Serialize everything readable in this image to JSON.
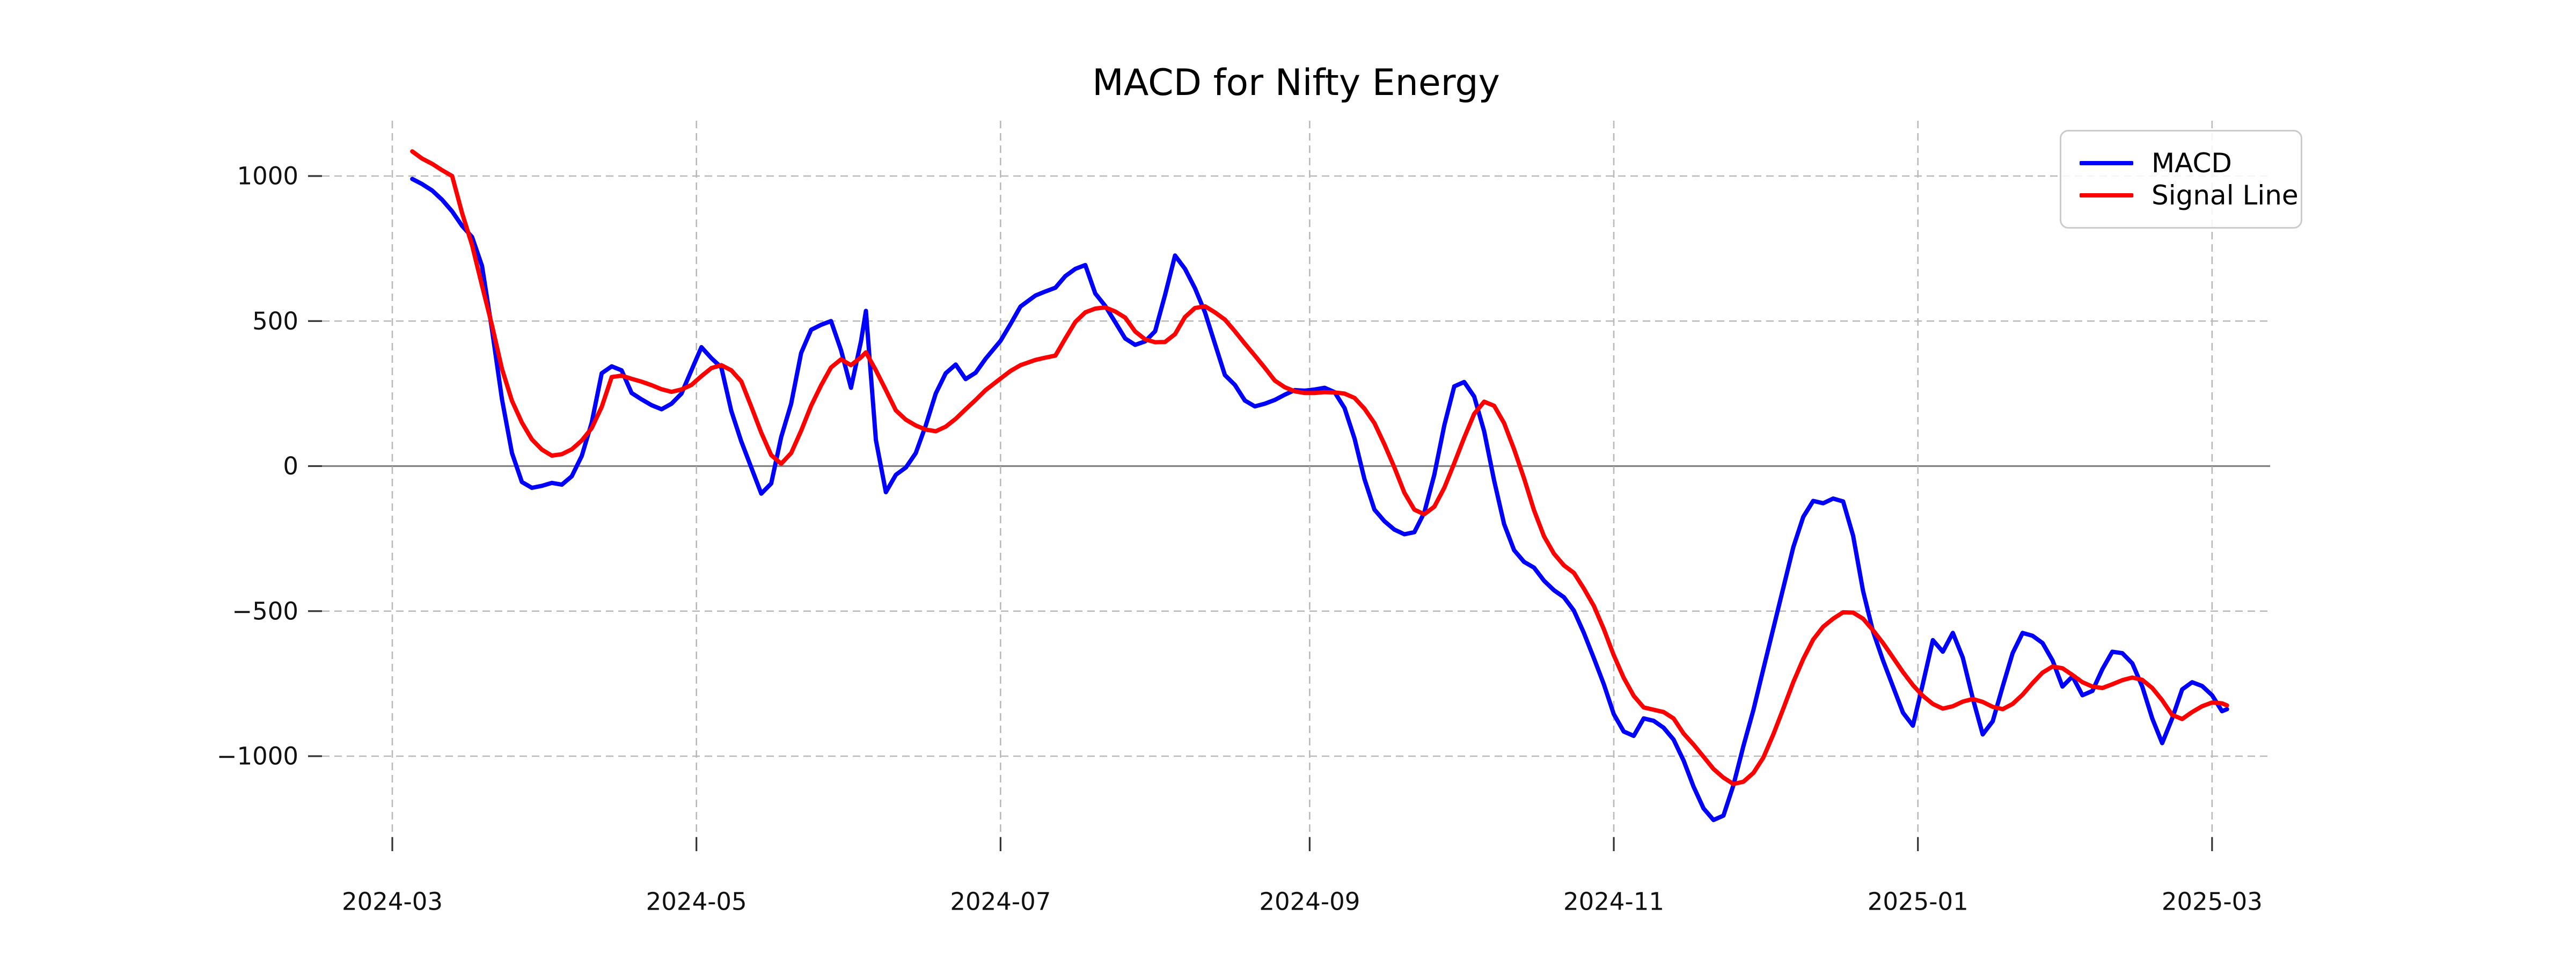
{
  "title": "MACD for Nifty Energy",
  "legend": {
    "items": [
      {
        "label": "MACD",
        "color": "#0000ff"
      },
      {
        "label": "Signal Line",
        "color": "#ff0000"
      }
    ]
  },
  "axes": {
    "y_ticks": [
      {
        "label": "1000",
        "value": 1000
      },
      {
        "label": "500",
        "value": 500
      },
      {
        "label": "0",
        "value": 0
      },
      {
        "label": "−500",
        "value": -500
      },
      {
        "label": "−1000",
        "value": -1000
      }
    ],
    "x_ticks": [
      {
        "label": "2024-03",
        "date": "2024-03-01"
      },
      {
        "label": "2024-05",
        "date": "2024-05-01"
      },
      {
        "label": "2024-07",
        "date": "2024-07-01"
      },
      {
        "label": "2024-09",
        "date": "2024-09-01"
      },
      {
        "label": "2024-11",
        "date": "2024-11-01"
      },
      {
        "label": "2025-01",
        "date": "2025-01-01"
      },
      {
        "label": "2025-03",
        "date": "2025-03-01"
      }
    ]
  },
  "chart_data": {
    "type": "line",
    "title": "MACD for Nifty Energy",
    "xlabel": "",
    "ylabel": "",
    "grid": true,
    "legend_position": "upper right",
    "zero_line": 0,
    "ylim": [
      -1350,
      1200
    ],
    "x_range": [
      "2024-03-05",
      "2025-03-04"
    ],
    "colors": {
      "macd": "#0000ff",
      "signal": "#ff0000",
      "grid": "#b9b9b9",
      "zero_line": "#808080",
      "tick": "#333333",
      "text": "#111111"
    },
    "dates": [
      "2024-03-05",
      "2024-03-07",
      "2024-03-09",
      "2024-03-11",
      "2024-03-13",
      "2024-03-15",
      "2024-03-17",
      "2024-03-19",
      "2024-03-21",
      "2024-03-23",
      "2024-03-25",
      "2024-03-27",
      "2024-03-29",
      "2024-03-31",
      "2024-04-02",
      "2024-04-04",
      "2024-04-06",
      "2024-04-08",
      "2024-04-10",
      "2024-04-12",
      "2024-04-14",
      "2024-04-16",
      "2024-04-18",
      "2024-04-20",
      "2024-04-22",
      "2024-04-24",
      "2024-04-26",
      "2024-04-28",
      "2024-04-30",
      "2024-05-02",
      "2024-05-04",
      "2024-05-06",
      "2024-05-08",
      "2024-05-10",
      "2024-05-12",
      "2024-05-14",
      "2024-05-16",
      "2024-05-18",
      "2024-05-20",
      "2024-05-22",
      "2024-05-24",
      "2024-05-26",
      "2024-05-28",
      "2024-05-30",
      "2024-06-01",
      "2024-06-03",
      "2024-06-04",
      "2024-06-06",
      "2024-06-08",
      "2024-06-10",
      "2024-06-12",
      "2024-06-14",
      "2024-06-16",
      "2024-06-18",
      "2024-06-20",
      "2024-06-22",
      "2024-06-24",
      "2024-06-26",
      "2024-06-28",
      "2024-07-01",
      "2024-07-03",
      "2024-07-05",
      "2024-07-08",
      "2024-07-10",
      "2024-07-12",
      "2024-07-14",
      "2024-07-16",
      "2024-07-18",
      "2024-07-20",
      "2024-07-22",
      "2024-07-24",
      "2024-07-26",
      "2024-07-28",
      "2024-07-30",
      "2024-08-01",
      "2024-08-03",
      "2024-08-05",
      "2024-08-07",
      "2024-08-09",
      "2024-08-11",
      "2024-08-13",
      "2024-08-15",
      "2024-08-17",
      "2024-08-19",
      "2024-08-21",
      "2024-08-23",
      "2024-08-25",
      "2024-08-27",
      "2024-08-29",
      "2024-08-31",
      "2024-09-02",
      "2024-09-04",
      "2024-09-06",
      "2024-09-08",
      "2024-09-10",
      "2024-09-12",
      "2024-09-14",
      "2024-09-16",
      "2024-09-18",
      "2024-09-20",
      "2024-09-22",
      "2024-09-24",
      "2024-09-26",
      "2024-09-28",
      "2024-09-30",
      "2024-10-02",
      "2024-10-04",
      "2024-10-06",
      "2024-10-08",
      "2024-10-10",
      "2024-10-12",
      "2024-10-14",
      "2024-10-16",
      "2024-10-18",
      "2024-10-20",
      "2024-10-22",
      "2024-10-24",
      "2024-10-26",
      "2024-10-28",
      "2024-10-30",
      "2024-11-01",
      "2024-11-03",
      "2024-11-05",
      "2024-11-07",
      "2024-11-09",
      "2024-11-11",
      "2024-11-13",
      "2024-11-15",
      "2024-11-17",
      "2024-11-19",
      "2024-11-21",
      "2024-11-23",
      "2024-11-25",
      "2024-11-27",
      "2024-11-29",
      "2024-12-01",
      "2024-12-03",
      "2024-12-05",
      "2024-12-07",
      "2024-12-09",
      "2024-12-11",
      "2024-12-13",
      "2024-12-15",
      "2024-12-17",
      "2024-12-19",
      "2024-12-21",
      "2024-12-23",
      "2024-12-25",
      "2024-12-27",
      "2024-12-29",
      "2024-12-31",
      "2025-01-02",
      "2025-01-04",
      "2025-01-06",
      "2025-01-08",
      "2025-01-10",
      "2025-01-12",
      "2025-01-14",
      "2025-01-16",
      "2025-01-18",
      "2025-01-20",
      "2025-01-22",
      "2025-01-24",
      "2025-01-26",
      "2025-01-28",
      "2025-01-30",
      "2025-02-01",
      "2025-02-03",
      "2025-02-05",
      "2025-02-07",
      "2025-02-09",
      "2025-02-11",
      "2025-02-13",
      "2025-02-15",
      "2025-02-17",
      "2025-02-19",
      "2025-02-21",
      "2025-02-23",
      "2025-02-25",
      "2025-02-27",
      "2025-03-01",
      "2025-03-03",
      "2025-03-04"
    ],
    "series": [
      {
        "name": "MACD",
        "color": "#0000ff",
        "values": [
          990,
          972,
          950,
          918,
          878,
          828,
          790,
          690,
          470,
          230,
          45,
          -55,
          -75,
          -68,
          -58,
          -64,
          -35,
          35,
          150,
          320,
          344,
          330,
          252,
          230,
          210,
          196,
          215,
          250,
          330,
          410,
          372,
          340,
          190,
          85,
          -5,
          -95,
          -60,
          100,
          215,
          390,
          470,
          487,
          500,
          400,
          270,
          430,
          535,
          90,
          -90,
          -30,
          -5,
          45,
          140,
          250,
          320,
          350,
          300,
          322,
          370,
          432,
          490,
          550,
          588,
          602,
          615,
          655,
          680,
          693,
          595,
          552,
          496,
          440,
          418,
          430,
          465,
          590,
          726,
          680,
          613,
          530,
          422,
          314,
          280,
          226,
          206,
          215,
          228,
          246,
          262,
          260,
          264,
          270,
          255,
          200,
          95,
          -45,
          -150,
          -190,
          -219,
          -235,
          -228,
          -160,
          -30,
          140,
          275,
          290,
          240,
          120,
          -50,
          -200,
          -290,
          -330,
          -350,
          -395,
          -428,
          -452,
          -498,
          -575,
          -662,
          -752,
          -855,
          -915,
          -930,
          -870,
          -878,
          -902,
          -943,
          -1015,
          -1105,
          -1180,
          -1220,
          -1205,
          -1100,
          -965,
          -841,
          -700,
          -560,
          -420,
          -280,
          -175,
          -120,
          -128,
          -112,
          -122,
          -240,
          -430,
          -570,
          -670,
          -760,
          -850,
          -895,
          -750,
          -600,
          -640,
          -575,
          -660,
          -800,
          -925,
          -880,
          -760,
          -645,
          -575,
          -585,
          -610,
          -670,
          -760,
          -725,
          -790,
          -775,
          -700,
          -640,
          -645,
          -680,
          -760,
          -870,
          -955,
          -870,
          -770,
          -745,
          -758,
          -790,
          -845,
          -838
        ]
      },
      {
        "name": "Signal Line",
        "color": "#ff0000",
        "values": [
          1085,
          1060,
          1042,
          1020,
          1000,
          872,
          762,
          622,
          485,
          335,
          225,
          150,
          92,
          57,
          36,
          41,
          58,
          88,
          131,
          204,
          307,
          312,
          301,
          291,
          279,
          265,
          256,
          264,
          280,
          310,
          338,
          348,
          330,
          292,
          205,
          115,
          38,
          8,
          45,
          122,
          208,
          278,
          340,
          368,
          348,
          375,
          392,
          330,
          262,
          192,
          160,
          140,
          126,
          120,
          136,
          163,
          196,
          228,
          262,
          302,
          328,
          348,
          366,
          374,
          381,
          440,
          497,
          530,
          543,
          547,
          533,
          512,
          464,
          437,
          427,
          428,
          455,
          514,
          545,
          551,
          530,
          505,
          465,
          422,
          381,
          339,
          295,
          272,
          258,
          252,
          252,
          255,
          254,
          250,
          235,
          198,
          148,
          75,
          -5,
          -92,
          -150,
          -166,
          -140,
          -75,
          10,
          98,
          180,
          222,
          208,
          148,
          58,
          -42,
          -152,
          -242,
          -302,
          -342,
          -368,
          -422,
          -482,
          -562,
          -652,
          -730,
          -792,
          -832,
          -840,
          -848,
          -870,
          -922,
          -960,
          -1002,
          -1044,
          -1074,
          -1096,
          -1088,
          -1058,
          -1005,
          -925,
          -836,
          -745,
          -665,
          -598,
          -554,
          -526,
          -504,
          -505,
          -526,
          -566,
          -610,
          -660,
          -710,
          -755,
          -792,
          -820,
          -836,
          -828,
          -812,
          -803,
          -813,
          -830,
          -838,
          -820,
          -788,
          -748,
          -712,
          -691,
          -697,
          -720,
          -745,
          -760,
          -765,
          -752,
          -738,
          -729,
          -737,
          -765,
          -807,
          -858,
          -872,
          -848,
          -828,
          -815,
          -818,
          -825
        ]
      }
    ]
  }
}
